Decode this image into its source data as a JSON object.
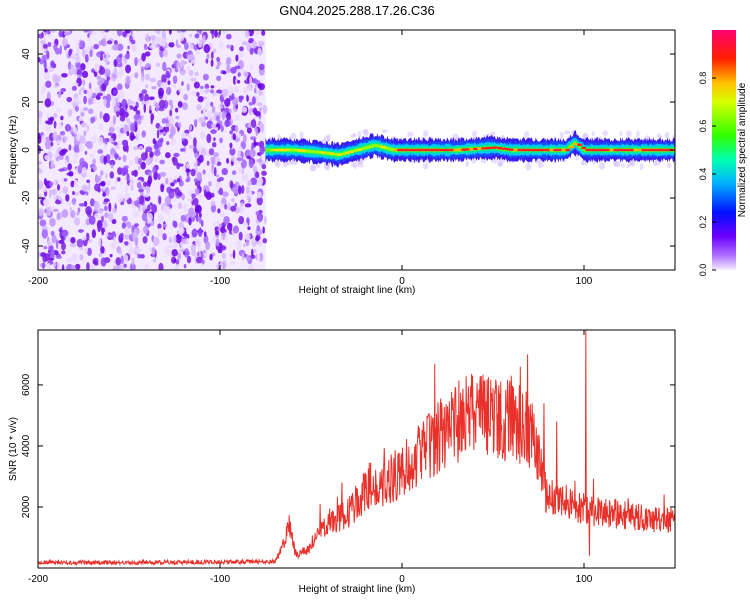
{
  "title": "GN04.2025.288.17.26.C36",
  "colors": {
    "snr_line": "#e8312a",
    "noise_purple": "#7a1fe0",
    "colorbar_stops": [
      "#f2e6ff",
      "#b070ff",
      "#6a00ff",
      "#0000ff",
      "#00c8ff",
      "#00ff80",
      "#40ff00",
      "#ffff00",
      "#ff8000",
      "#ff0000",
      "#ff0080"
    ]
  },
  "chart_data": [
    {
      "type": "heatmap",
      "name": "spectrogram",
      "xlabel": "Height of straight line (km)",
      "ylabel": "Frequency (Hz)",
      "xlim": [
        -200,
        150
      ],
      "ylim": [
        -50,
        50
      ],
      "xticks": [
        -200,
        -100,
        0,
        100
      ],
      "xtick_labels": [
        "-200",
        "-100",
        "0",
        "100"
      ],
      "yticks": [
        -40,
        -20,
        0,
        20,
        40
      ],
      "ytick_labels": [
        "-40",
        "-20",
        "0",
        "20",
        "40"
      ],
      "noise_region_x": [
        -200,
        -75
      ],
      "signal_region_x": [
        -75,
        150
      ],
      "signal_center_freq": [
        [
          -75,
          0
        ],
        [
          -60,
          0
        ],
        [
          -45,
          -1
        ],
        [
          -35,
          -2
        ],
        [
          -25,
          0
        ],
        [
          -15,
          2
        ],
        [
          -5,
          0
        ],
        [
          10,
          0
        ],
        [
          30,
          0
        ],
        [
          50,
          1
        ],
        [
          60,
          0
        ],
        [
          75,
          0
        ],
        [
          90,
          0
        ],
        [
          95,
          3
        ],
        [
          100,
          0
        ],
        [
          150,
          0
        ]
      ],
      "colorbar": {
        "label": "Normalized spectral amplitude",
        "ticks": [
          0.0,
          0.2,
          0.4,
          0.6,
          0.8
        ],
        "tick_labels": [
          "0.0",
          "0.2",
          "0.4",
          "0.6",
          "0.8"
        ],
        "range": [
          0,
          1
        ]
      }
    },
    {
      "type": "line",
      "name": "snr",
      "xlabel": "Height of straight line (km)",
      "ylabel": "SNR (10 * v/v)",
      "xlim": [
        -200,
        150
      ],
      "ylim": [
        0,
        7800
      ],
      "xticks": [
        -200,
        -100,
        0,
        100
      ],
      "xtick_labels": [
        "-200",
        "-100",
        "0",
        "100"
      ],
      "yticks": [
        2000,
        4000,
        6000
      ],
      "ytick_labels": [
        "2000",
        "4000",
        "6000"
      ],
      "envelope": [
        [
          -200,
          150
        ],
        [
          -150,
          150
        ],
        [
          -100,
          170
        ],
        [
          -70,
          180
        ],
        [
          -65,
          800
        ],
        [
          -62,
          1400
        ],
        [
          -58,
          400
        ],
        [
          -50,
          700
        ],
        [
          -45,
          1200
        ],
        [
          -40,
          1500
        ],
        [
          -30,
          1800
        ],
        [
          -20,
          2600
        ],
        [
          -10,
          2800
        ],
        [
          0,
          3300
        ],
        [
          10,
          3800
        ],
        [
          20,
          4400
        ],
        [
          30,
          4900
        ],
        [
          40,
          5200
        ],
        [
          50,
          5100
        ],
        [
          60,
          4900
        ],
        [
          70,
          4700
        ],
        [
          75,
          3800
        ],
        [
          80,
          2200
        ],
        [
          90,
          2200
        ],
        [
          100,
          2000
        ],
        [
          110,
          1900
        ],
        [
          120,
          1800
        ],
        [
          130,
          1700
        ],
        [
          140,
          1600
        ],
        [
          150,
          1600
        ]
      ],
      "spikes": [
        [
          -63,
          1500
        ],
        [
          -45,
          2100
        ],
        [
          -33,
          2800
        ],
        [
          -18,
          3450
        ],
        [
          -8,
          3200
        ],
        [
          10,
          4200
        ],
        [
          25,
          5300
        ],
        [
          38,
          5600
        ],
        [
          50,
          5900
        ],
        [
          60,
          6300
        ],
        [
          65,
          6600
        ],
        [
          69,
          7000
        ],
        [
          78,
          5400
        ],
        [
          85,
          4800
        ],
        [
          101,
          7800
        ],
        [
          103,
          400
        ]
      ]
    }
  ]
}
